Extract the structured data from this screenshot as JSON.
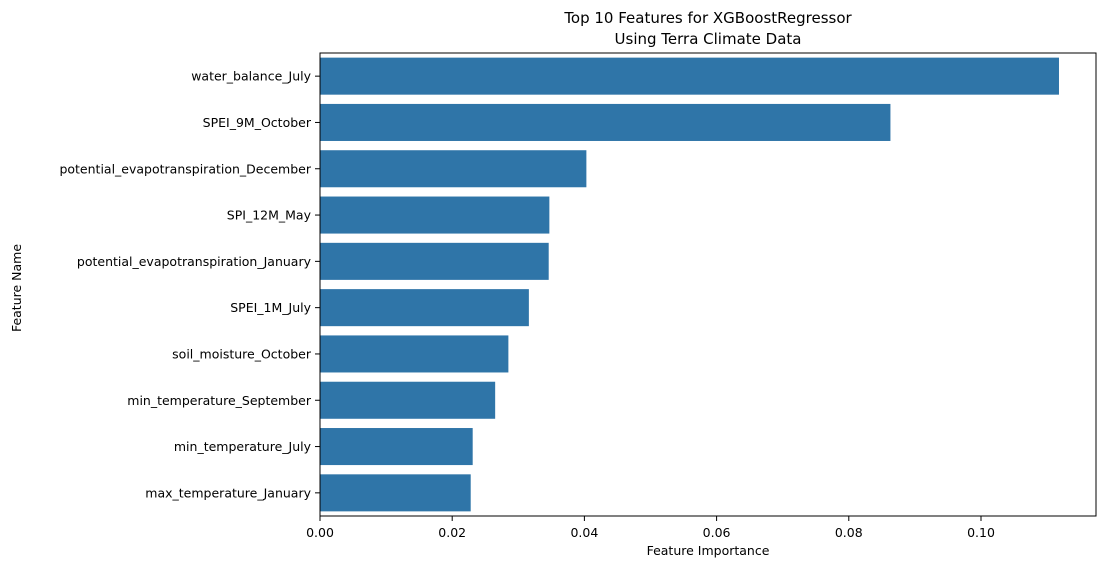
{
  "chart_data": {
    "type": "bar",
    "orientation": "horizontal",
    "title": "Top 10 Features for XGBoostRegressor",
    "subtitle": "Using Terra Climate Data",
    "xlabel": "Feature Importance",
    "ylabel": "Feature Name",
    "categories": [
      "water_balance_July",
      "SPEI_9M_October",
      "potential_evapotranspiration_December",
      "SPI_12M_May",
      "potential_evapotranspiration_January",
      "SPEI_1M_July",
      "soil_moisture_October",
      "min_temperature_September",
      "min_temperature_July",
      "max_temperature_January"
    ],
    "values": [
      0.1118,
      0.0863,
      0.0403,
      0.0347,
      0.0346,
      0.0316,
      0.0285,
      0.0265,
      0.0231,
      0.0228
    ],
    "xlim": [
      0,
      0.1174
    ],
    "xticks": [
      0.0,
      0.02,
      0.04,
      0.06,
      0.08,
      0.1
    ],
    "xtick_labels": [
      "0.00",
      "0.02",
      "0.04",
      "0.06",
      "0.08",
      "0.10"
    ],
    "bar_color": "#2f75a8",
    "grid": false,
    "legend": "none"
  }
}
